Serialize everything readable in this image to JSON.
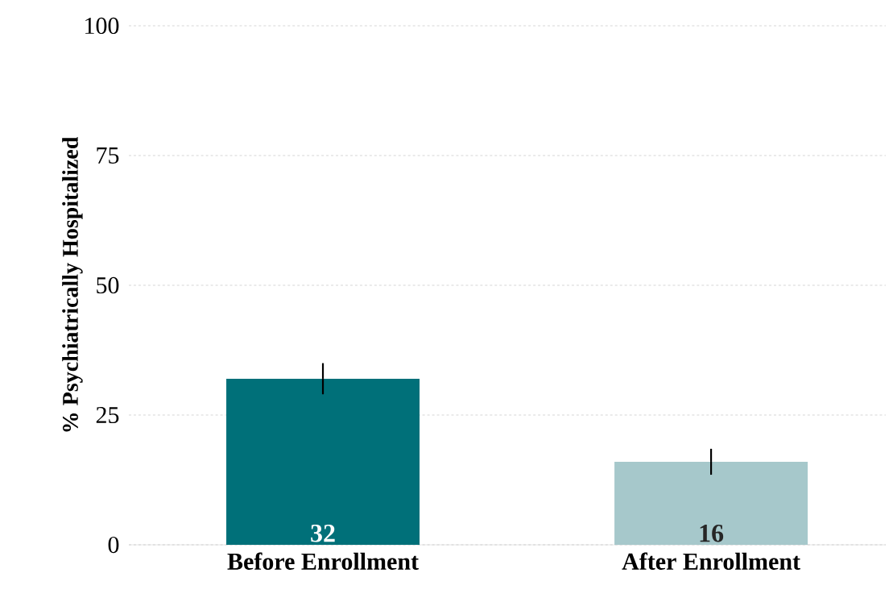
{
  "chart_data": {
    "type": "bar",
    "ylabel": "% Psychiatrically Hospitalized",
    "categories": [
      "Before Enrollment",
      "After Enrollment"
    ],
    "values": [
      32,
      16
    ],
    "colors": [
      "#007079",
      "#a6c8cb"
    ],
    "errors": [
      3,
      2.5
    ],
    "data_labels": true,
    "ylim": [
      0,
      100
    ],
    "yticks": [
      0,
      25,
      50,
      75,
      100
    ],
    "grid": "y"
  }
}
